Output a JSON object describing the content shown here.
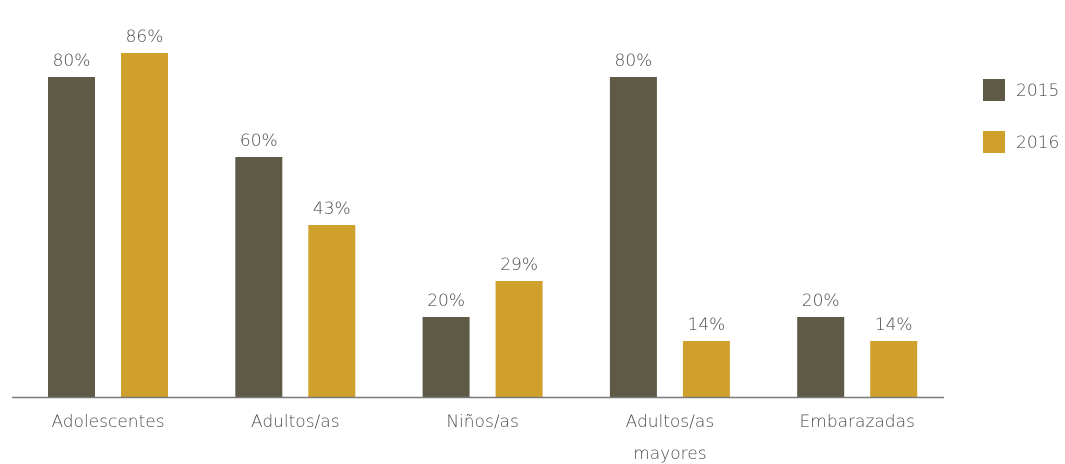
{
  "chart_data": {
    "type": "bar",
    "categories": [
      [
        "Adolescentes"
      ],
      [
        "Adultos/as"
      ],
      [
        "Niños/as"
      ],
      [
        "Adultos/as",
        "mayores"
      ],
      [
        "Embarazadas"
      ]
    ],
    "series": [
      {
        "name": "2015",
        "color": "#5e5a46",
        "values": [
          80,
          60,
          20,
          80,
          20
        ],
        "labels": [
          "80%",
          "60%",
          "20%",
          "80%",
          "20%"
        ]
      },
      {
        "name": "2016",
        "color": "#d0a02c",
        "values": [
          86,
          43,
          29,
          14,
          14
        ],
        "labels": [
          "86%",
          "43%",
          "29%",
          "14%",
          "14%"
        ]
      }
    ],
    "ylim": [
      0,
      100
    ],
    "grid": false,
    "legend": "right",
    "axis_color": "#7a7a7a"
  }
}
